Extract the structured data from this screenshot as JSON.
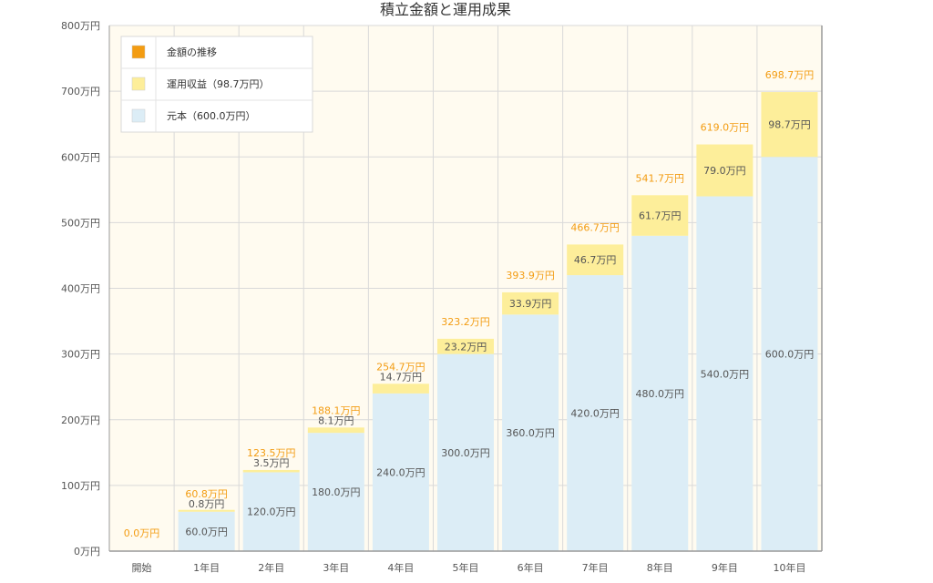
{
  "chart_data": {
    "type": "bar",
    "stacked": true,
    "title": "積立金額と運用成果",
    "categories": [
      "開始",
      "1年目",
      "2年目",
      "3年目",
      "4年目",
      "5年目",
      "6年目",
      "7年目",
      "8年目",
      "9年目",
      "10年目"
    ],
    "series": [
      {
        "name": "元本（600.0万円）",
        "color": "#dcedf6",
        "values": [
          0,
          60,
          120,
          180,
          240,
          300,
          360,
          420,
          480,
          540,
          600
        ],
        "labels": [
          "",
          "60.0万円",
          "120.0万円",
          "180.0万円",
          "240.0万円",
          "300.0万円",
          "360.0万円",
          "420.0万円",
          "480.0万円",
          "540.0万円",
          "600.0万円"
        ]
      },
      {
        "name": "運用収益（98.7万円）",
        "color": "#fdee9a",
        "values": [
          0,
          0.8,
          3.5,
          8.1,
          14.7,
          23.2,
          33.9,
          46.7,
          61.7,
          79.0,
          98.7
        ],
        "labels": [
          "",
          "0.8万円",
          "3.5万円",
          "8.1万円",
          "14.7万円",
          "23.2万円",
          "33.9万円",
          "46.7万円",
          "61.7万円",
          "79.0万円",
          "98.7万円"
        ]
      }
    ],
    "totals": {
      "name": "金額の推移",
      "color": "#f39c12",
      "values": [
        0,
        60.8,
        123.5,
        188.1,
        254.7,
        323.2,
        393.9,
        466.7,
        541.7,
        619.0,
        698.7
      ],
      "labels": [
        "0.0万円",
        "60.8万円",
        "123.5万円",
        "188.1万円",
        "254.7万円",
        "323.2万円",
        "393.9万円",
        "466.7万円",
        "541.7万円",
        "619.0万円",
        "698.7万円"
      ]
    },
    "ylim": [
      0,
      800
    ],
    "yticks": [
      0,
      100,
      200,
      300,
      400,
      500,
      600,
      700,
      800
    ],
    "ytick_labels": [
      "0万円",
      "100万円",
      "200万円",
      "300万円",
      "400万円",
      "500万円",
      "600万円",
      "700万円",
      "800万円"
    ],
    "legend": [
      {
        "label": "金額の推移",
        "color": "#f39c12"
      },
      {
        "label": "運用収益（98.7万円）",
        "color": "#fdee9a"
      },
      {
        "label": "元本（600.0万円）",
        "color": "#dcedf6"
      }
    ],
    "legend_position": "top-left",
    "grid": true,
    "colors": {
      "plot_bg": "#fffbf0",
      "grid": "#d9d9d9",
      "axis": "#999999",
      "tick_text": "#555555",
      "inner_label": "#555555",
      "total_label": "#f39c12"
    }
  }
}
